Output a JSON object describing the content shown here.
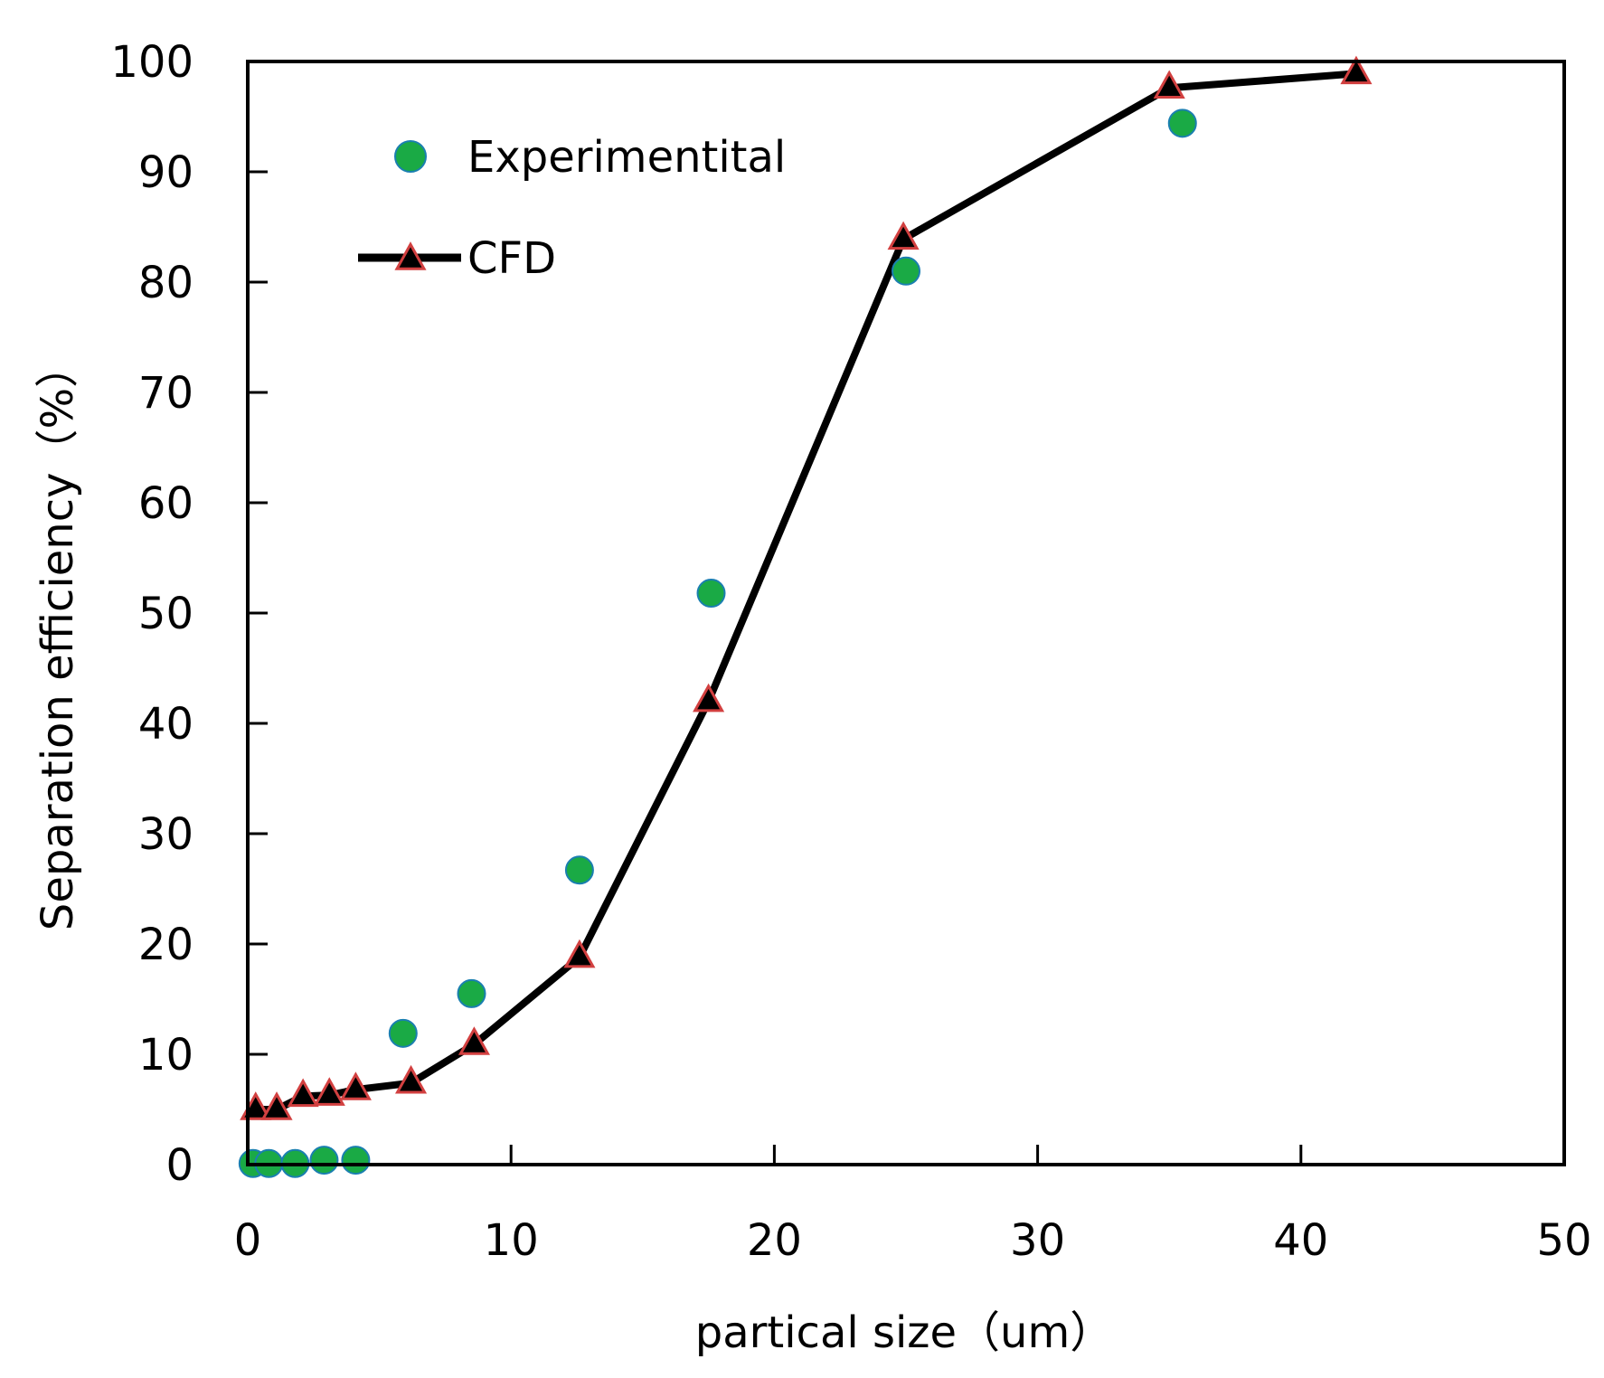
{
  "chart_data": {
    "type": "scatter",
    "title": "",
    "xlabel": "partical size（um）",
    "ylabel": "Separation efficiency（%）",
    "xlim": [
      0,
      50
    ],
    "ylim": [
      0,
      100
    ],
    "x_ticks": [
      0,
      10,
      20,
      30,
      40,
      50
    ],
    "y_ticks": [
      0,
      10,
      20,
      30,
      40,
      50,
      60,
      70,
      80,
      90,
      100
    ],
    "grid": false,
    "legend_position": "top-left",
    "series": [
      {
        "name": "Experimentital",
        "kind": "scatter",
        "color": "#1aaa45",
        "edge_color": "#1a7fb0",
        "x": [
          0.2,
          0.8,
          1.8,
          2.9,
          4.1,
          5.9,
          8.5,
          12.6,
          17.6,
          25.0,
          35.5
        ],
        "y": [
          0.1,
          0.1,
          0.1,
          0.4,
          0.4,
          11.9,
          15.5,
          26.7,
          51.8,
          81.0,
          94.4
        ]
      },
      {
        "name": "CFD",
        "kind": "line",
        "color": "#000000",
        "marker_edge": "#d24040",
        "x": [
          0.3,
          1.1,
          2.1,
          3.1,
          4.1,
          6.2,
          8.6,
          12.6,
          17.5,
          24.9,
          35.0,
          42.1
        ],
        "y": [
          5.0,
          5.0,
          6.2,
          6.3,
          6.8,
          7.4,
          10.9,
          18.8,
          42.0,
          83.9,
          97.6,
          98.9
        ]
      }
    ]
  }
}
